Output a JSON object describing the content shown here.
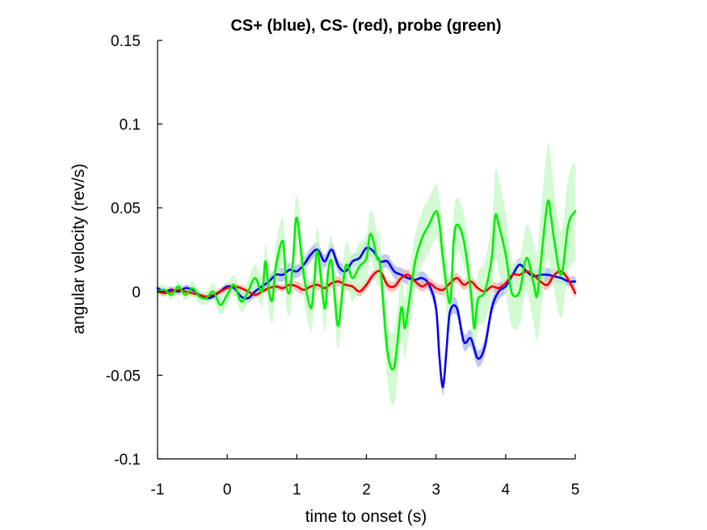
{
  "chart_data": {
    "type": "line",
    "title": "CS+ (blue), CS- (red), probe (green)",
    "xlabel": "time to onset (s)",
    "ylabel": "angular velocity (rev/s)",
    "xlim": [
      -1,
      5
    ],
    "ylim": [
      -0.1,
      0.15
    ],
    "xticks": [
      -1,
      0,
      1,
      2,
      3,
      4,
      5
    ],
    "xtick_labels": [
      "-1",
      "0",
      "1",
      "2",
      "3",
      "4",
      "5"
    ],
    "yticks": [
      -0.1,
      -0.05,
      0,
      0.05,
      0.1,
      0.15
    ],
    "ytick_labels": [
      "-0.1",
      "-0.05",
      "0",
      "0.05",
      "0.1",
      "0.15"
    ],
    "grid": false,
    "series": [
      {
        "color": "#0000ee",
        "band_color": "#aab4f0",
        "x": [
          -1.0,
          -0.9,
          -0.8,
          -0.7,
          -0.6,
          -0.5,
          -0.4,
          -0.3,
          -0.2,
          -0.1,
          0.0,
          0.1,
          0.2,
          0.3,
          0.4,
          0.5,
          0.6,
          0.7,
          0.8,
          0.9,
          1.0,
          1.1,
          1.2,
          1.3,
          1.4,
          1.5,
          1.6,
          1.7,
          1.8,
          1.9,
          2.0,
          2.1,
          2.2,
          2.3,
          2.4,
          2.5,
          2.6,
          2.7,
          2.8,
          2.9,
          3.0,
          3.05,
          3.1,
          3.15,
          3.2,
          3.3,
          3.4,
          3.5,
          3.6,
          3.7,
          3.8,
          3.9,
          4.0,
          4.1,
          4.2,
          4.3,
          4.4,
          4.5,
          4.6,
          4.7,
          4.8,
          4.9,
          5.0
        ],
        "y": [
          0.002,
          0.0,
          0.001,
          0.0,
          0.002,
          0.001,
          -0.002,
          -0.004,
          -0.003,
          0.0,
          0.003,
          0.002,
          -0.003,
          -0.004,
          0.0,
          0.003,
          0.006,
          0.01,
          0.01,
          0.013,
          0.012,
          0.016,
          0.022,
          0.025,
          0.018,
          0.025,
          0.015,
          0.012,
          0.018,
          0.02,
          0.026,
          0.024,
          0.018,
          0.018,
          0.012,
          0.01,
          0.008,
          0.007,
          0.008,
          0.004,
          -0.01,
          -0.04,
          -0.057,
          -0.035,
          -0.012,
          -0.01,
          -0.03,
          -0.028,
          -0.04,
          -0.033,
          -0.01,
          0.0,
          0.003,
          0.01,
          0.016,
          0.012,
          0.009,
          0.01,
          0.01,
          0.009,
          0.008,
          0.006,
          0.006
        ],
        "err": [
          0.002,
          0.002,
          0.002,
          0.002,
          0.002,
          0.002,
          0.002,
          0.002,
          0.002,
          0.002,
          0.002,
          0.002,
          0.003,
          0.003,
          0.003,
          0.003,
          0.003,
          0.004,
          0.004,
          0.004,
          0.004,
          0.004,
          0.004,
          0.004,
          0.004,
          0.004,
          0.004,
          0.004,
          0.004,
          0.004,
          0.004,
          0.004,
          0.004,
          0.004,
          0.004,
          0.004,
          0.004,
          0.004,
          0.004,
          0.004,
          0.005,
          0.005,
          0.005,
          0.005,
          0.005,
          0.005,
          0.005,
          0.005,
          0.005,
          0.005,
          0.005,
          0.005,
          0.004,
          0.004,
          0.004,
          0.004,
          0.004,
          0.004,
          0.004,
          0.004,
          0.003,
          0.003,
          0.003
        ]
      },
      {
        "color": "#ee0000",
        "band_color": "#f4b0a8",
        "x": [
          -1.0,
          -0.9,
          -0.8,
          -0.7,
          -0.6,
          -0.5,
          -0.4,
          -0.3,
          -0.2,
          -0.1,
          0.0,
          0.1,
          0.2,
          0.3,
          0.4,
          0.5,
          0.6,
          0.7,
          0.8,
          0.9,
          1.0,
          1.1,
          1.2,
          1.3,
          1.4,
          1.5,
          1.6,
          1.7,
          1.8,
          1.9,
          2.0,
          2.1,
          2.2,
          2.3,
          2.4,
          2.5,
          2.6,
          2.7,
          2.8,
          2.9,
          3.0,
          3.1,
          3.2,
          3.3,
          3.4,
          3.5,
          3.6,
          3.7,
          3.8,
          3.9,
          4.0,
          4.1,
          4.2,
          4.3,
          4.4,
          4.5,
          4.6,
          4.7,
          4.8,
          4.9,
          5.0
        ],
        "y": [
          0.0,
          -0.001,
          0.0,
          0.001,
          0.0,
          -0.001,
          -0.002,
          -0.003,
          -0.002,
          0.0,
          0.002,
          0.003,
          0.002,
          0.0,
          -0.002,
          0.0,
          0.002,
          0.003,
          0.002,
          0.004,
          0.003,
          0.001,
          0.003,
          0.004,
          0.002,
          0.005,
          0.006,
          0.004,
          0.003,
          0.0,
          0.004,
          0.01,
          0.012,
          0.004,
          0.003,
          0.008,
          0.01,
          0.006,
          0.003,
          0.005,
          0.002,
          0.001,
          0.005,
          0.008,
          0.004,
          0.006,
          0.002,
          0.0,
          0.003,
          0.002,
          0.005,
          0.01,
          0.01,
          0.012,
          0.01,
          0.006,
          0.004,
          0.01,
          0.012,
          0.007,
          -0.001
        ],
        "err": [
          0.002,
          0.002,
          0.002,
          0.002,
          0.002,
          0.002,
          0.002,
          0.002,
          0.002,
          0.002,
          0.002,
          0.002,
          0.002,
          0.002,
          0.002,
          0.002,
          0.002,
          0.002,
          0.002,
          0.002,
          0.003,
          0.003,
          0.003,
          0.003,
          0.003,
          0.003,
          0.003,
          0.003,
          0.003,
          0.003,
          0.003,
          0.003,
          0.003,
          0.003,
          0.003,
          0.003,
          0.003,
          0.003,
          0.003,
          0.003,
          0.003,
          0.003,
          0.003,
          0.003,
          0.003,
          0.003,
          0.003,
          0.003,
          0.003,
          0.003,
          0.003,
          0.003,
          0.003,
          0.003,
          0.003,
          0.003,
          0.003,
          0.003,
          0.003,
          0.003,
          0.003
        ]
      },
      {
        "color": "#00ee00",
        "band_color": "#c4f8c4",
        "x": [
          -1.0,
          -0.9,
          -0.8,
          -0.7,
          -0.6,
          -0.5,
          -0.4,
          -0.3,
          -0.2,
          -0.1,
          0.0,
          0.1,
          0.2,
          0.3,
          0.4,
          0.5,
          0.55,
          0.6,
          0.65,
          0.7,
          0.8,
          0.85,
          0.9,
          0.95,
          1.0,
          1.1,
          1.2,
          1.25,
          1.3,
          1.4,
          1.45,
          1.5,
          1.55,
          1.6,
          1.7,
          1.8,
          1.9,
          2.0,
          2.05,
          2.1,
          2.15,
          2.2,
          2.3,
          2.4,
          2.5,
          2.55,
          2.6,
          2.7,
          2.8,
          2.9,
          3.0,
          3.05,
          3.1,
          3.2,
          3.25,
          3.3,
          3.4,
          3.5,
          3.55,
          3.6,
          3.7,
          3.8,
          3.85,
          3.9,
          4.0,
          4.05,
          4.1,
          4.2,
          4.3,
          4.4,
          4.45,
          4.5,
          4.6,
          4.65,
          4.7,
          4.8,
          4.9,
          5.0
        ],
        "y": [
          0.0,
          0.001,
          -0.002,
          0.003,
          -0.002,
          0.002,
          -0.003,
          -0.004,
          0.0,
          -0.008,
          -0.002,
          0.004,
          -0.006,
          0.0,
          0.008,
          0.0,
          0.018,
          0.0,
          -0.005,
          0.015,
          0.03,
          0.004,
          0.0,
          0.02,
          0.044,
          0.01,
          -0.01,
          0.005,
          0.024,
          -0.01,
          0.012,
          0.018,
          -0.005,
          -0.02,
          0.015,
          0.008,
          0.015,
          0.02,
          0.034,
          0.03,
          0.02,
          0.015,
          -0.035,
          -0.045,
          -0.01,
          -0.022,
          -0.01,
          0.018,
          0.032,
          0.04,
          0.048,
          0.04,
          0.02,
          -0.007,
          0.028,
          0.04,
          0.03,
          0.0,
          -0.022,
          -0.005,
          0.0,
          0.02,
          0.045,
          0.04,
          0.022,
          0.008,
          -0.002,
          0.0,
          0.02,
          0.005,
          -0.003,
          0.015,
          0.053,
          0.045,
          0.03,
          0.01,
          0.04,
          0.048
        ],
        "err": [
          0.003,
          0.003,
          0.003,
          0.003,
          0.003,
          0.004,
          0.004,
          0.004,
          0.005,
          0.006,
          0.006,
          0.006,
          0.006,
          0.007,
          0.008,
          0.009,
          0.01,
          0.012,
          0.014,
          0.014,
          0.014,
          0.014,
          0.014,
          0.014,
          0.014,
          0.014,
          0.014,
          0.014,
          0.014,
          0.014,
          0.014,
          0.014,
          0.014,
          0.014,
          0.014,
          0.014,
          0.014,
          0.014,
          0.014,
          0.016,
          0.016,
          0.016,
          0.018,
          0.022,
          0.02,
          0.018,
          0.018,
          0.016,
          0.016,
          0.016,
          0.016,
          0.016,
          0.016,
          0.016,
          0.016,
          0.016,
          0.016,
          0.016,
          0.016,
          0.016,
          0.018,
          0.022,
          0.026,
          0.028,
          0.024,
          0.022,
          0.02,
          0.02,
          0.02,
          0.024,
          0.026,
          0.03,
          0.034,
          0.034,
          0.03,
          0.026,
          0.028,
          0.03
        ]
      }
    ]
  }
}
